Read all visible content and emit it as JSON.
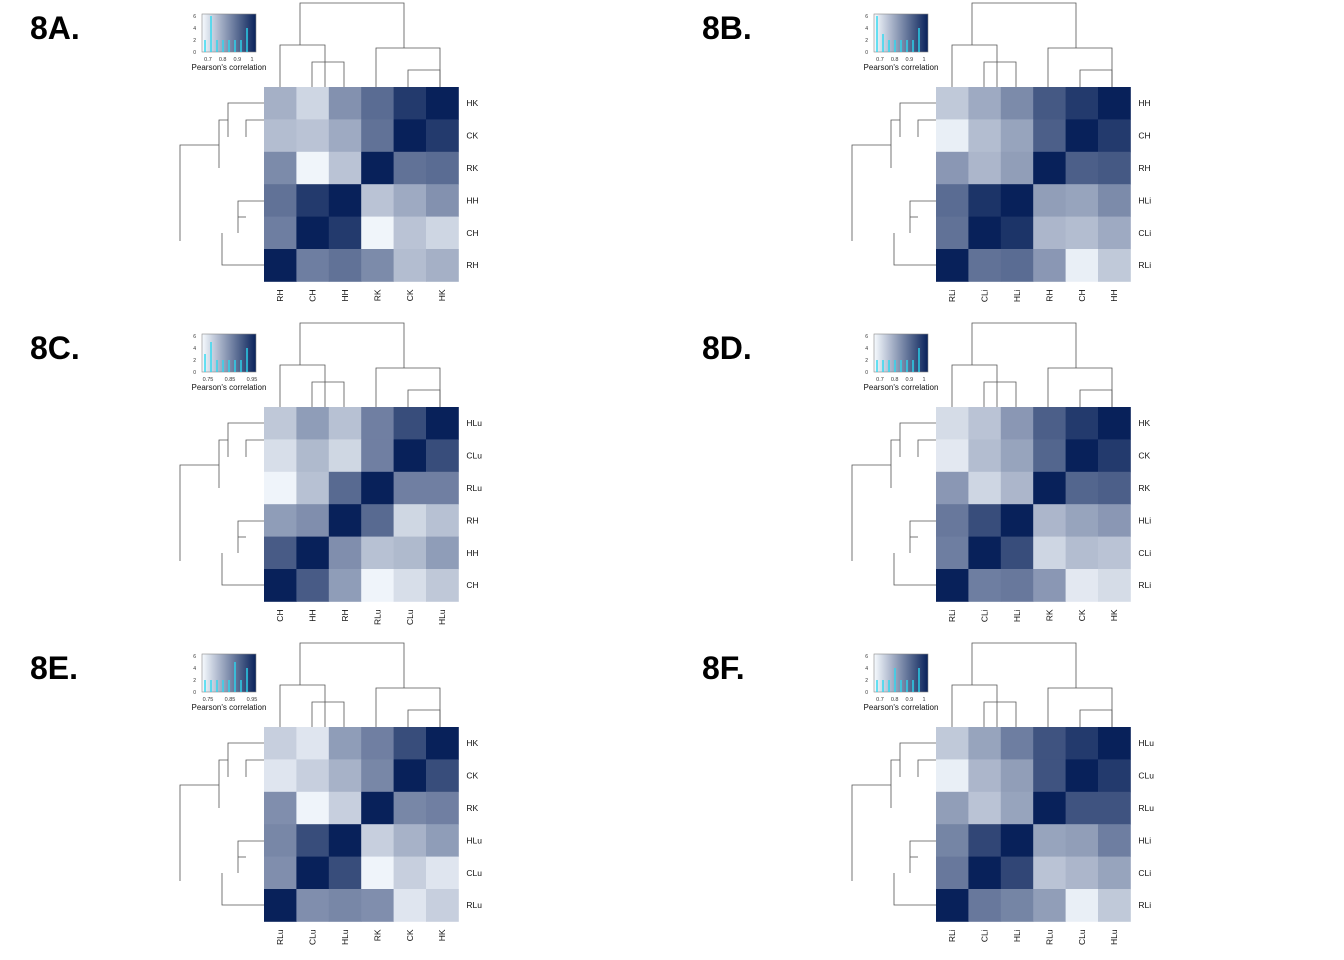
{
  "figure": {
    "key_axis_title": "Pearson's correlation",
    "key_count_ticks": [
      "0",
      "2",
      "4",
      "6"
    ],
    "colors": {
      "low": "#f7fbff",
      "high": "#08215a",
      "key_histogram": "#29d9f0",
      "dendrogram": "#555555"
    }
  },
  "chart_data": [
    {
      "type": "heatmap",
      "panel_label": "8A.",
      "title": "",
      "color_key": {
        "tick_labels": [
          "0.7",
          "0.8",
          "0.9",
          "1"
        ],
        "range": [
          0.65,
          1.0
        ],
        "counts": [
          2,
          6,
          2,
          2,
          2,
          2,
          2,
          4
        ]
      },
      "rows": [
        "HK",
        "CK",
        "RK",
        "HH",
        "CH",
        "RH"
      ],
      "cols": [
        "RH",
        "CH",
        "HH",
        "RK",
        "CK",
        "HK"
      ],
      "values": [
        [
          0.77,
          0.71,
          0.82,
          0.88,
          0.96,
          1.0
        ],
        [
          0.75,
          0.74,
          0.78,
          0.87,
          1.0,
          0.96
        ],
        [
          0.83,
          0.66,
          0.74,
          1.0,
          0.87,
          0.88
        ],
        [
          0.87,
          0.96,
          1.0,
          0.74,
          0.78,
          0.82
        ],
        [
          0.85,
          1.0,
          0.96,
          0.66,
          0.74,
          0.71
        ],
        [
          1.0,
          0.85,
          0.87,
          0.83,
          0.75,
          0.77
        ]
      ]
    },
    {
      "type": "heatmap",
      "panel_label": "8B.",
      "title": "",
      "color_key": {
        "tick_labels": [
          "0.7",
          "0.8",
          "0.9",
          "1"
        ],
        "range": [
          0.65,
          1.0
        ],
        "counts": [
          6,
          3,
          2,
          2,
          2,
          2,
          2,
          4
        ]
      },
      "rows": [
        "HH",
        "CH",
        "RH",
        "HLi",
        "CLi",
        "RLi"
      ],
      "cols": [
        "RLi",
        "CLi",
        "HLi",
        "RH",
        "CH",
        "HH"
      ],
      "values": [
        [
          0.73,
          0.78,
          0.83,
          0.91,
          0.96,
          1.0
        ],
        [
          0.67,
          0.75,
          0.79,
          0.9,
          1.0,
          0.96
        ],
        [
          0.81,
          0.76,
          0.8,
          1.0,
          0.9,
          0.91
        ],
        [
          0.88,
          0.97,
          1.0,
          0.8,
          0.79,
          0.83
        ],
        [
          0.87,
          1.0,
          0.97,
          0.76,
          0.75,
          0.78
        ],
        [
          1.0,
          0.87,
          0.88,
          0.81,
          0.67,
          0.73
        ]
      ]
    },
    {
      "type": "heatmap",
      "panel_label": "8C.",
      "title": "",
      "color_key": {
        "tick_labels": [
          "0.75",
          "0.85",
          "0.95"
        ],
        "range": [
          0.7,
          1.0
        ],
        "counts": [
          3,
          5,
          2,
          2,
          2,
          2,
          2,
          4
        ]
      },
      "rows": [
        "HLu",
        "CLu",
        "RLu",
        "RH",
        "HH",
        "CH"
      ],
      "cols": [
        "CH",
        "HH",
        "RH",
        "RLu",
        "CLu",
        "HLu"
      ],
      "values": [
        [
          0.77,
          0.83,
          0.78,
          0.87,
          0.94,
          1.0
        ],
        [
          0.74,
          0.79,
          0.75,
          0.87,
          1.0,
          0.94
        ],
        [
          0.71,
          0.78,
          0.9,
          1.0,
          0.87,
          0.87
        ],
        [
          0.83,
          0.85,
          1.0,
          0.9,
          0.75,
          0.78
        ],
        [
          0.92,
          1.0,
          0.85,
          0.78,
          0.79,
          0.83
        ],
        [
          1.0,
          0.92,
          0.83,
          0.71,
          0.74,
          0.77
        ]
      ]
    },
    {
      "type": "heatmap",
      "panel_label": "8D.",
      "title": "",
      "color_key": {
        "tick_labels": [
          "0.7",
          "0.8",
          "0.9",
          "1"
        ],
        "range": [
          0.65,
          1.0
        ],
        "counts": [
          2,
          2,
          2,
          2,
          2,
          2,
          2,
          4
        ]
      },
      "rows": [
        "HK",
        "CK",
        "RK",
        "HLi",
        "CLi",
        "RLi"
      ],
      "cols": [
        "RLi",
        "CLi",
        "HLi",
        "RK",
        "CK",
        "HK"
      ],
      "values": [
        [
          0.7,
          0.74,
          0.81,
          0.9,
          0.96,
          1.0
        ],
        [
          0.68,
          0.75,
          0.79,
          0.89,
          1.0,
          0.96
        ],
        [
          0.81,
          0.71,
          0.76,
          1.0,
          0.89,
          0.9
        ],
        [
          0.86,
          0.93,
          1.0,
          0.76,
          0.79,
          0.81
        ],
        [
          0.85,
          1.0,
          0.93,
          0.71,
          0.75,
          0.74
        ],
        [
          1.0,
          0.85,
          0.86,
          0.81,
          0.68,
          0.7
        ]
      ]
    },
    {
      "type": "heatmap",
      "panel_label": "8E.",
      "title": "",
      "color_key": {
        "tick_labels": [
          "0.75",
          "0.85",
          "0.95"
        ],
        "range": [
          0.7,
          1.0
        ],
        "counts": [
          2,
          2,
          2,
          2,
          2,
          5,
          2,
          4
        ]
      },
      "rows": [
        "HK",
        "CK",
        "RK",
        "HLu",
        "CLu",
        "RLu"
      ],
      "cols": [
        "RLu",
        "CLu",
        "HLu",
        "RK",
        "CK",
        "HK"
      ],
      "values": [
        [
          0.76,
          0.73,
          0.83,
          0.87,
          0.94,
          1.0
        ],
        [
          0.73,
          0.76,
          0.8,
          0.86,
          1.0,
          0.94
        ],
        [
          0.85,
          0.71,
          0.76,
          1.0,
          0.86,
          0.87
        ],
        [
          0.86,
          0.94,
          1.0,
          0.76,
          0.8,
          0.83
        ],
        [
          0.85,
          1.0,
          0.94,
          0.71,
          0.76,
          0.73
        ],
        [
          1.0,
          0.85,
          0.86,
          0.85,
          0.73,
          0.76
        ]
      ]
    },
    {
      "type": "heatmap",
      "panel_label": "8F.",
      "title": "",
      "color_key": {
        "tick_labels": [
          "0.7",
          "0.8",
          "0.9",
          "1"
        ],
        "range": [
          0.65,
          1.0
        ],
        "counts": [
          2,
          2,
          2,
          4,
          2,
          2,
          2,
          4
        ]
      },
      "rows": [
        "HLu",
        "CLu",
        "RLu",
        "HLi",
        "CLi",
        "RLi"
      ],
      "cols": [
        "RLi",
        "CLi",
        "HLi",
        "RLu",
        "CLu",
        "HLu"
      ],
      "values": [
        [
          0.73,
          0.79,
          0.85,
          0.92,
          0.96,
          1.0
        ],
        [
          0.67,
          0.76,
          0.8,
          0.92,
          1.0,
          0.96
        ],
        [
          0.8,
          0.74,
          0.79,
          1.0,
          0.92,
          0.92
        ],
        [
          0.84,
          0.94,
          1.0,
          0.79,
          0.8,
          0.85
        ],
        [
          0.86,
          1.0,
          0.94,
          0.74,
          0.76,
          0.79
        ],
        [
          1.0,
          0.86,
          0.84,
          0.8,
          0.67,
          0.73
        ]
      ]
    }
  ]
}
